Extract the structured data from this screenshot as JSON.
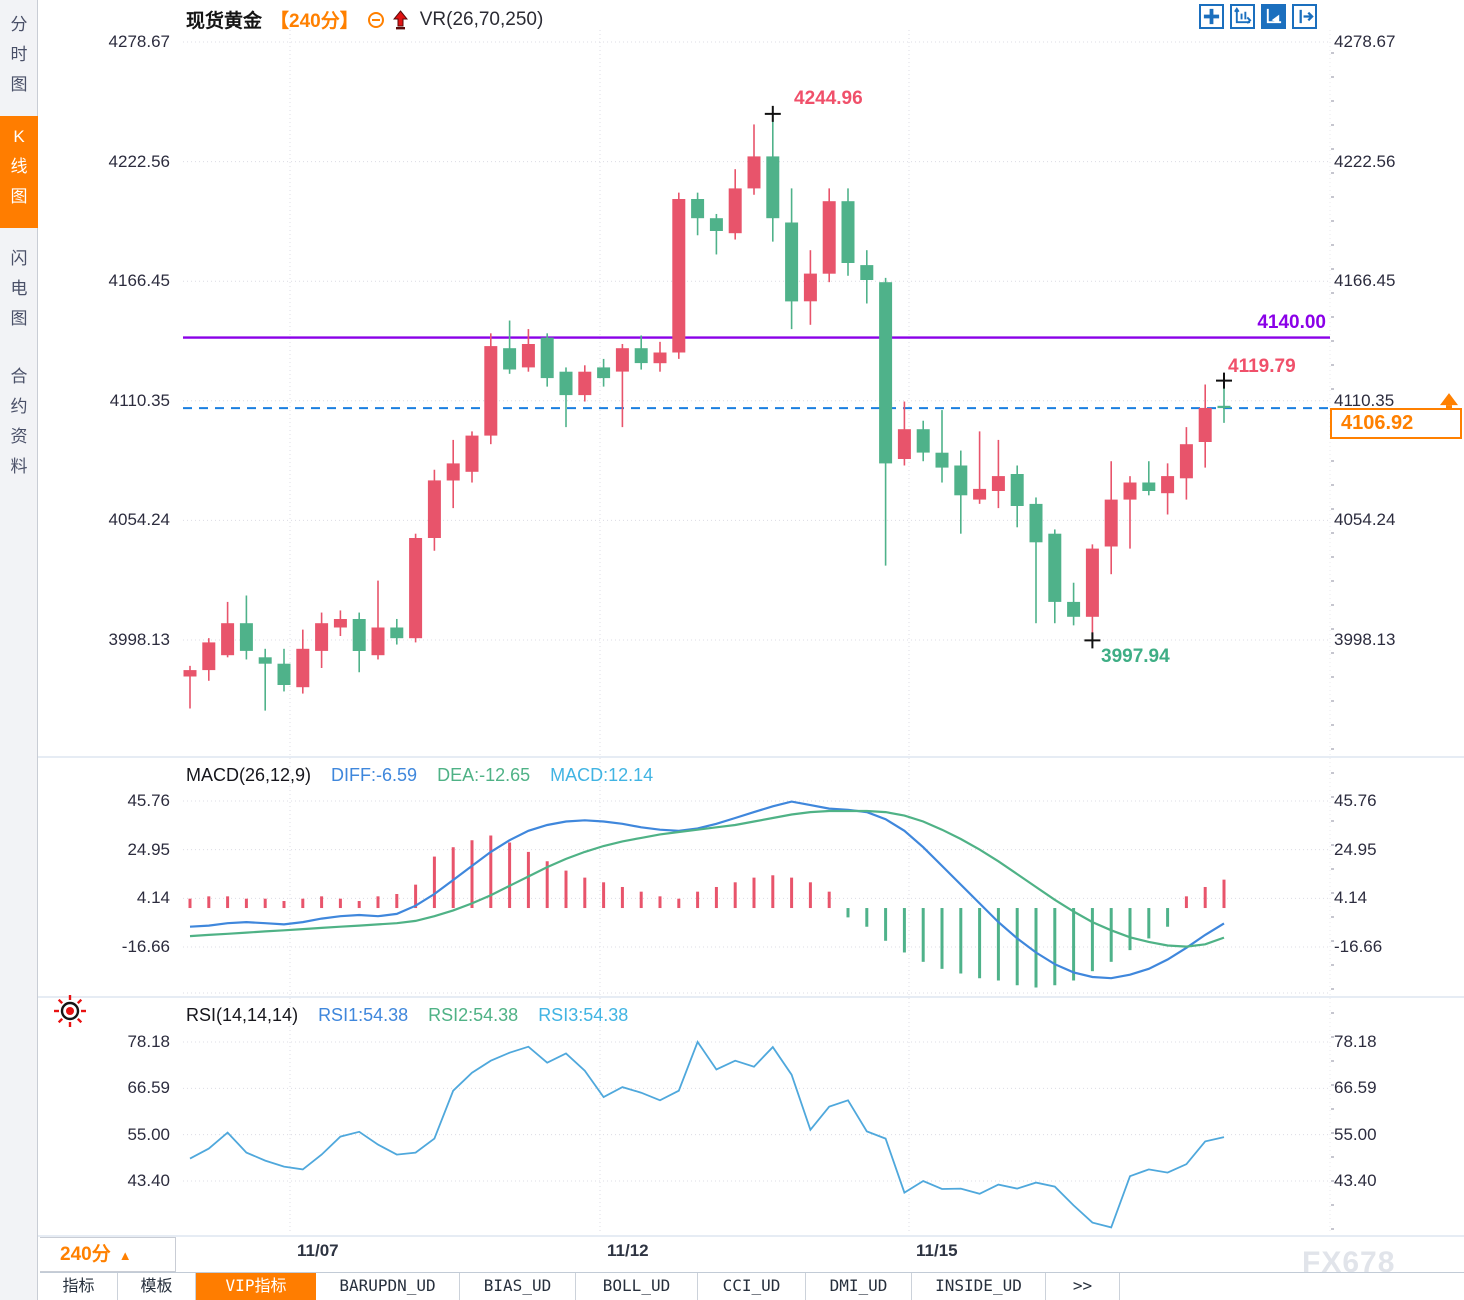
{
  "header": {
    "symbol": "现货黄金",
    "period": "【240分】",
    "vr_label": "VR(26,70,250)"
  },
  "toolbar": {
    "icons": [
      "pan-crosshair-icon",
      "axis-zoom-icon",
      "auto-scale-icon",
      "scroll-to-latest-icon"
    ],
    "accent_color": "#1b6fbe"
  },
  "sidebar": {
    "items": [
      {
        "label": "分时图",
        "active": false
      },
      {
        "label": "K线图",
        "active": true
      },
      {
        "label": "闪电图",
        "active": false
      },
      {
        "label": "合约资料",
        "active": false
      }
    ]
  },
  "price_axis_ticks": [
    "4278.67",
    "4222.56",
    "4166.45",
    "4110.35",
    "4054.24",
    "3998.13"
  ],
  "annotations": {
    "high_label": "4244.96",
    "low_label": "3997.94",
    "recent_high_label": "4119.79",
    "hline_label": "4140.00",
    "current_price_label": "4106.92"
  },
  "macd_header": {
    "title": "MACD(26,12,9)",
    "diff_label": "DIFF:-6.59",
    "dea_label": "DEA:-12.65",
    "macd_label": "MACD:12.14",
    "ticks": [
      "45.76",
      "24.95",
      "4.14",
      "-16.66"
    ]
  },
  "rsi_header": {
    "title": "RSI(14,14,14)",
    "rsi1_label": "RSI1:54.38",
    "rsi2_label": "RSI2:54.38",
    "rsi3_label": "RSI3:54.38",
    "ticks": [
      "78.18",
      "66.59",
      "55.00",
      "43.40"
    ]
  },
  "xaxis": {
    "labels": [
      "11/07",
      "11/12",
      "11/15"
    ],
    "period_label": "240分"
  },
  "bottom_tabs": [
    "指标",
    "模板",
    "VIP指标",
    "BARUPDN_UD",
    "BIAS_UD",
    "BOLL_UD",
    "CCI_UD",
    "DMI_UD",
    "INSIDE_UD",
    ">>"
  ],
  "bottom_tabs_active_index": 2,
  "watermark": "FX678",
  "colors": {
    "up_candle": "#e8546b",
    "down_candle": "#4fb28a",
    "hline_purple": "#8a00e8",
    "current_price_dash": "#1a7fe0",
    "accent_orange": "#ff8000",
    "diff_line": "#3f87dc",
    "dea_line": "#4fb286",
    "rsi_line": "#4fa8dc",
    "grid": "#dcdce4"
  },
  "chart_data": {
    "type": "candlestick",
    "symbol": "现货黄金",
    "interval": "240分",
    "overlays": {
      "horizontal_level": 4140.0,
      "current_price": 4106.92
    },
    "price_axis": [
      4278.67,
      4222.56,
      4166.45,
      4110.35,
      4054.24,
      3998.13
    ],
    "x_gridline_labels": [
      "11/07",
      "11/12",
      "11/15"
    ],
    "candles_ohlc": [
      [
        3981,
        3986,
        3966,
        3984
      ],
      [
        3984,
        3999,
        3979,
        3997
      ],
      [
        3991,
        4016,
        3990,
        4006
      ],
      [
        4006,
        4019,
        3989,
        3993
      ],
      [
        3990,
        3994,
        3965,
        3987
      ],
      [
        3987,
        3994,
        3974,
        3977
      ],
      [
        3976,
        4003,
        3973,
        3994
      ],
      [
        3993,
        4011,
        3985,
        4006
      ],
      [
        4004,
        4012,
        4000,
        4008
      ],
      [
        4008,
        4011,
        3983,
        3993
      ],
      [
        3991,
        4026,
        3989,
        4004
      ],
      [
        4004,
        4008,
        3996,
        3999
      ],
      [
        3999,
        4048,
        3997,
        4046
      ],
      [
        4046,
        4078,
        4040,
        4073
      ],
      [
        4073,
        4092,
        4060,
        4081
      ],
      [
        4077,
        4096,
        4072,
        4094
      ],
      [
        4094,
        4142,
        4090,
        4136
      ],
      [
        4135,
        4148,
        4123,
        4125
      ],
      [
        4126,
        4144,
        4124,
        4137
      ],
      [
        4140,
        4142,
        4117,
        4121
      ],
      [
        4124,
        4126,
        4098,
        4113
      ],
      [
        4113,
        4127,
        4110,
        4124
      ],
      [
        4126,
        4130,
        4117,
        4121
      ],
      [
        4124,
        4137,
        4098,
        4135
      ],
      [
        4135,
        4141,
        4125,
        4128
      ],
      [
        4128,
        4138,
        4124,
        4133
      ],
      [
        4133,
        4208,
        4130,
        4205
      ],
      [
        4205,
        4208,
        4188,
        4196
      ],
      [
        4196,
        4198,
        4179,
        4190
      ],
      [
        4189,
        4219,
        4186,
        4210
      ],
      [
        4210,
        4240,
        4207,
        4225
      ],
      [
        4225,
        4244.96,
        4185,
        4196
      ],
      [
        4194,
        4210,
        4144,
        4157
      ],
      [
        4157,
        4181,
        4146,
        4170
      ],
      [
        4170,
        4210,
        4166,
        4204
      ],
      [
        4204,
        4210,
        4169,
        4175
      ],
      [
        4174,
        4181,
        4156,
        4167
      ],
      [
        4166,
        4168,
        4033,
        4081
      ],
      [
        4083,
        4110,
        4080,
        4097
      ],
      [
        4097,
        4101,
        4082,
        4086
      ],
      [
        4086,
        4106,
        4072,
        4079
      ],
      [
        4080,
        4087,
        4048,
        4066
      ],
      [
        4064,
        4096,
        4062,
        4069
      ],
      [
        4068,
        4092,
        4060,
        4075
      ],
      [
        4076,
        4080,
        4051,
        4061
      ],
      [
        4062,
        4065,
        4006,
        4044
      ],
      [
        4048,
        4050,
        4006,
        4016
      ],
      [
        4016,
        4025,
        4005,
        4009
      ],
      [
        4009,
        4043,
        3997.94,
        4041
      ],
      [
        4042,
        4082,
        4029,
        4064
      ],
      [
        4064,
        4075,
        4041,
        4072
      ],
      [
        4072,
        4082,
        4066,
        4068
      ],
      [
        4067,
        4081,
        4057,
        4075
      ],
      [
        4074,
        4098,
        4064,
        4090
      ],
      [
        4091,
        4118,
        4079,
        4107
      ],
      [
        4108,
        4119.79,
        4100,
        4106.92
      ]
    ],
    "markers": [
      {
        "name": "high",
        "index": 31,
        "value": 4244.96
      },
      {
        "name": "low",
        "index": 48,
        "value": 3997.94
      },
      {
        "name": "recent-high",
        "index": 55,
        "value": 4119.79
      }
    ],
    "macd": {
      "params": [
        26,
        12,
        9
      ],
      "axis": [
        45.76,
        24.95,
        4.14,
        -16.66
      ],
      "diff": [
        -8,
        -7.5,
        -6.5,
        -6,
        -6.5,
        -7,
        -6,
        -4.5,
        -3.5,
        -3,
        -3.5,
        -2.5,
        1,
        6,
        12,
        18,
        24,
        29,
        33,
        35.5,
        37,
        37.5,
        37,
        36,
        34.5,
        33.5,
        33,
        34,
        36,
        38.5,
        41,
        43.5,
        45.5,
        44,
        42.5,
        42,
        41,
        38,
        33,
        26,
        18,
        10,
        2,
        -6,
        -13,
        -19,
        -24,
        -27.5,
        -29.5,
        -30,
        -28.5,
        -26,
        -22,
        -17,
        -11.5,
        -6.59
      ],
      "dea": [
        -12,
        -11.5,
        -11,
        -10.5,
        -10,
        -9.5,
        -9,
        -8.5,
        -8,
        -7.5,
        -7,
        -6.5,
        -5.5,
        -3.5,
        -1,
        2,
        5.5,
        9.5,
        13.5,
        17.5,
        21,
        24,
        26.5,
        28.5,
        30,
        31.5,
        32.5,
        33.5,
        34.5,
        35.5,
        37,
        38.5,
        40,
        41,
        41.5,
        41.5,
        41.5,
        41,
        39.5,
        37,
        33.5,
        29.5,
        25,
        20,
        14.5,
        9,
        3.5,
        -1.5,
        -6,
        -9.5,
        -12.5,
        -14.5,
        -16,
        -16.5,
        -15.5,
        -12.65
      ],
      "hist": [
        4,
        5,
        5,
        4,
        4,
        3,
        4,
        5,
        4,
        3,
        5,
        6,
        10,
        22,
        26,
        29,
        31,
        28,
        24,
        20,
        16,
        13,
        11,
        9,
        7,
        5,
        4,
        7,
        9,
        11,
        13,
        14,
        13,
        11,
        7,
        -4,
        -8,
        -14,
        -19,
        -23,
        -26,
        -28,
        -30,
        -31,
        -33,
        -34,
        -33,
        -31,
        -27,
        -23,
        -18,
        -13,
        -8,
        5,
        9,
        12.14
      ]
    },
    "rsi": {
      "params": [
        14,
        14,
        14
      ],
      "axis": [
        78.18,
        66.59,
        55.0,
        43.4
      ],
      "values": [
        49,
        51.5,
        55.5,
        50.5,
        48.5,
        47,
        46.3,
        50,
        54.5,
        55.7,
        52.5,
        50,
        50.5,
        54,
        66,
        70.5,
        73.5,
        75.5,
        77,
        73,
        75.3,
        71,
        64.4,
        66.9,
        65.5,
        63.6,
        66,
        78.2,
        71.3,
        73.5,
        72,
        76.9,
        70,
        56.2,
        62,
        63.6,
        55.8,
        54,
        40.5,
        43.4,
        41.4,
        41.5,
        40.2,
        42.5,
        41.5,
        43,
        42,
        37.3,
        33,
        31.8,
        44.6,
        46.3,
        45.5,
        47.6,
        53.3,
        54.38
      ]
    }
  }
}
